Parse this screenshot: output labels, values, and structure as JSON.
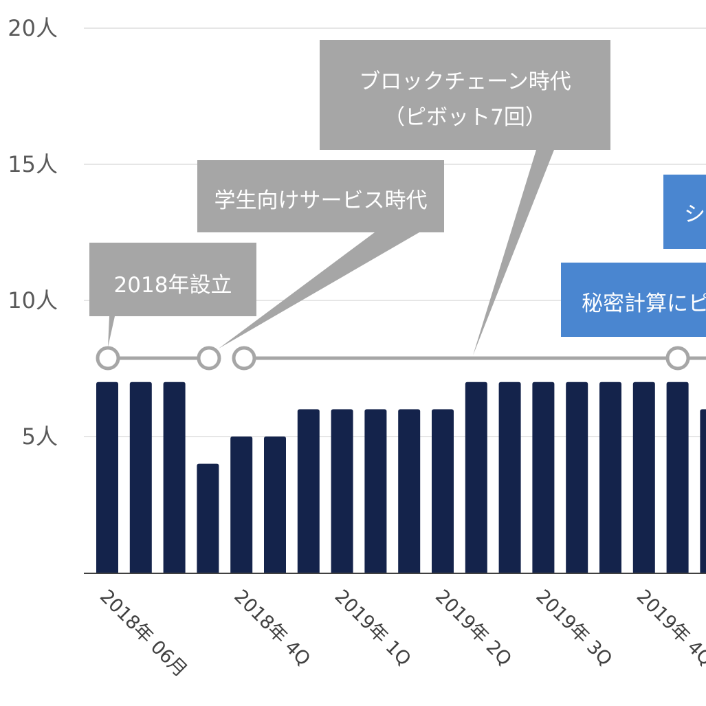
{
  "chart_data": {
    "type": "bar",
    "y_unit": "人",
    "ylim": [
      0,
      20
    ],
    "yticks": [
      "5人",
      "10人",
      "15人",
      "20人"
    ],
    "grid": true,
    "colors": {
      "bar": "#14234b",
      "grid": "#e6e6e6",
      "axis": "#404040",
      "timeline": "#a6a6a6",
      "gray_callout": "#a6a6a6",
      "blue_callout": "#4a86d0"
    },
    "values": [
      7,
      7,
      7,
      4,
      5,
      5,
      6,
      6,
      6,
      6,
      6,
      7,
      7,
      7,
      7,
      7,
      7,
      7,
      6
    ],
    "tick_labels": [
      "2018年 06月",
      "2018年 4Q",
      "2019年 1Q",
      "2019年 2Q",
      "2019年 3Q",
      "2019年 4Q"
    ],
    "tick_label_positions": [
      0,
      4,
      7,
      10,
      13,
      16
    ],
    "annotations": [
      {
        "text": [
          "2018年設立"
        ],
        "style": "gray"
      },
      {
        "text": [
          "学生向けサービス時代"
        ],
        "style": "gray"
      },
      {
        "text": [
          "ブロックチェーン時代",
          "（ピボット7回）"
        ],
        "style": "gray"
      },
      {
        "text": [
          "秘密計算にピ"
        ],
        "style": "blue"
      },
      {
        "text": [
          "シ"
        ],
        "style": "blue"
      }
    ]
  }
}
